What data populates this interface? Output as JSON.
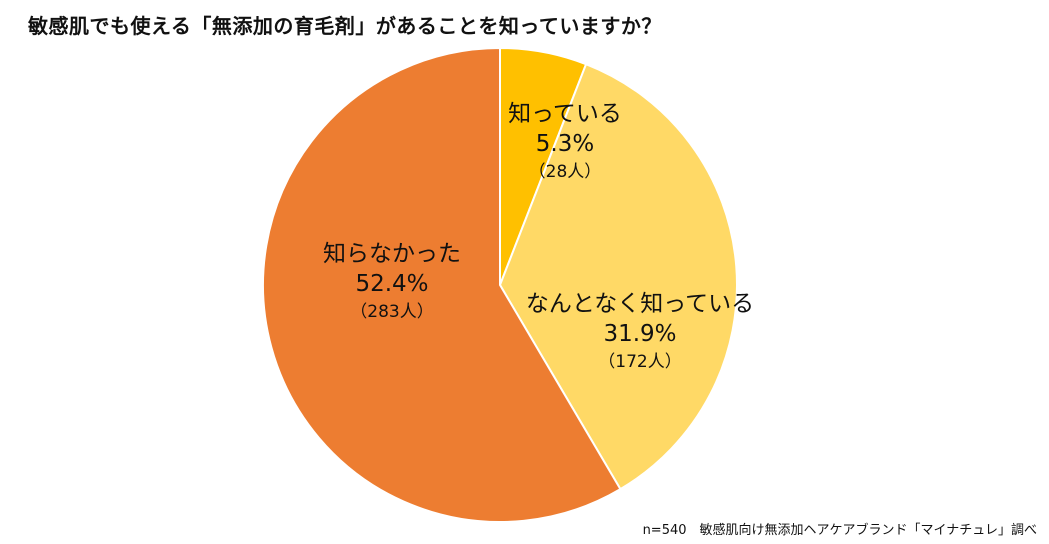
{
  "chart_data": {
    "type": "pie",
    "title": "敏感肌でも使える「無添加の育毛剤」があることを知っていますか？",
    "slices": [
      {
        "label": "知っている",
        "value": 5.3,
        "percent_label": "5.3%",
        "count_label": "（28人）",
        "color": "#FFC000"
      },
      {
        "label": "なんとなく知っている",
        "value": 31.9,
        "percent_label": "31.9%",
        "count_label": "（172人）",
        "color": "#FFD966"
      },
      {
        "label": "知らなかった",
        "value": 52.4,
        "percent_label": "52.4%",
        "count_label": "（283人）",
        "color": "#ED7D31"
      }
    ],
    "start_angle_deg": 0,
    "direction": "clockwise"
  },
  "footnote": "n=540　敏感肌向け無添加ヘアケアブランド「マイナチュレ」調べ"
}
